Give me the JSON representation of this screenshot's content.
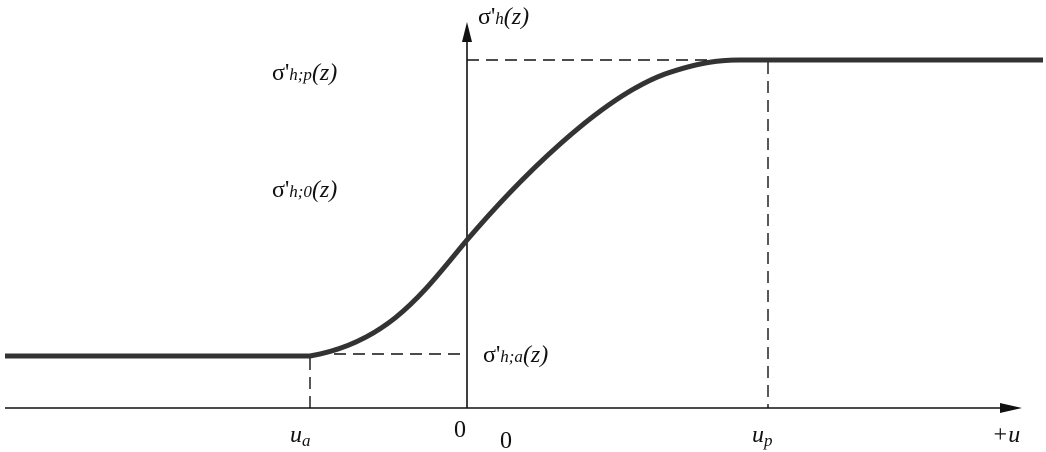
{
  "axis_labels": {
    "vertical": {
      "base": "σ'",
      "sub": "h",
      "tail": "(z)"
    },
    "horizontal": "+u"
  },
  "levels": [
    {
      "base": "σ'",
      "sub": "h;p",
      "tail": "(z)"
    },
    {
      "base": "σ'",
      "sub": "h;0",
      "tail": "(z)"
    },
    {
      "base": "σ'",
      "sub": "h;a",
      "tail": "(z)"
    }
  ],
  "displacements": [
    {
      "base": "u",
      "sub": "a"
    },
    {
      "base": "u",
      "sub": "p"
    }
  ],
  "origin_labels": [
    "0",
    "0"
  ]
}
